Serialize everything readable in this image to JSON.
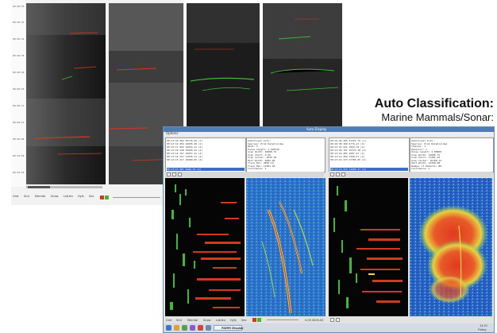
{
  "back_window": {
    "time_ticks": [
      "00:20:53",
      "00:20:47",
      "00:20:41",
      "00:20:35",
      "00:20:29",
      "00:20:23",
      "00:20:17",
      "00:20:11",
      "00:20:05",
      "00:19:59",
      "00:19:53"
    ],
    "tabs": [
      "Gmt",
      "Snd",
      "Mermbl",
      "Snow",
      "Lstrlen",
      "Hyfs",
      "Sev"
    ]
  },
  "heading": {
    "title": "Auto Classification:",
    "subtitle": "Marine Mammals/Sonar:"
  },
  "front_window": {
    "title": "Auto Display",
    "menu": "Options",
    "left_list": [
      "00:13:18.384 30736.50 (1)",
      "00:13:16.354 22095.48 (1)",
      "00:13:17.094 14034.41 (4)",
      "00:13:18.348 15958.23 (4)",
      "00:13:15.767 16557.41 (4)",
      "00:13:14.767 13936.71 (4)",
      "00:13:13.417 10468.05 (4)",
      "00:13:13.487 9468.15 (4)"
    ],
    "left_details": [
      "Additional Info:",
      "Species: Prob Delphinidae",
      "Band: 3",
      "Pulse Length: 1.025519",
      "Scan Width: 16888.75",
      "Scan Start: 0.00",
      "Scan Center: 3036.38",
      "Half Width: 4002.06",
      "Track Min: 4568.10",
      "Track Max: 13381.40",
      "Confidence: 1"
    ],
    "right_list": [
      "00:16:46.205 41321.79 (1)",
      "00:16:38.369 6776.21 (4)",
      "00:13:47.941 7963.78 (4)",
      "00:13:20.707 15375.38 (4)",
      "00:13:16.285 4907.67 (4)",
      "00:13:13.456 7998.27 (4)",
      "00:13:16.373 17785.95 (4)",
      "00:13:13.315 11405.17 (4)"
    ],
    "right_details": [
      "Additional Info:",
      "Species: Prob Delphinidae",
      "Channel: 1",
      "Detector: 1",
      "Pulse Length: 3.00000",
      "Scan Width: 16888.75",
      "Scan Start: 11381.25",
      "Scan Center: 16788.12",
      "Half Width: 13398.88",
      "Number of Detects: 88",
      "Confidence: 1"
    ],
    "bottom_tabs": [
      "Gmt",
      "Snd",
      "Mermbl",
      "Snow",
      "Lstrlen",
      "Hyfs",
      "Sev"
    ],
    "bottom_value": "0.00 0000.00",
    "taskbar": {
      "app_label": "PAMM Display",
      "time": "14:31",
      "date": "Friday"
    }
  },
  "colors": {
    "spectrogram_black": "#0d0d0d",
    "detection_red": "#d23a1e",
    "detection_green": "#3fb838",
    "sonar_blue": "#2a61c9",
    "title_bar": "#4f7cb3"
  }
}
